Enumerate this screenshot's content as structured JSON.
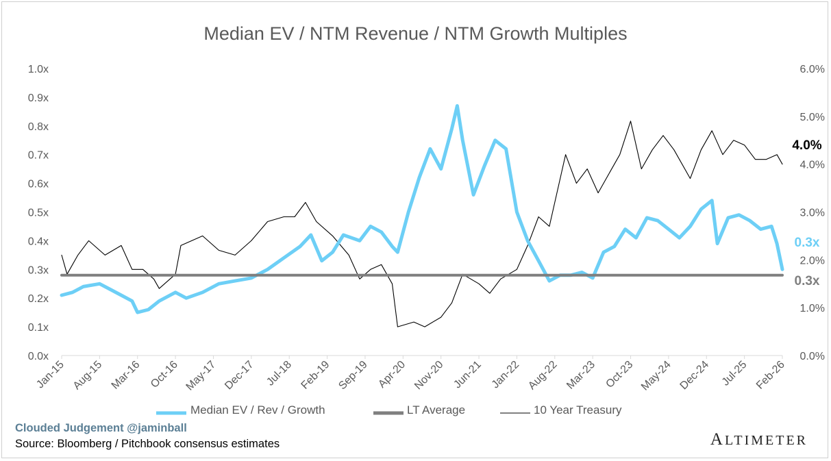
{
  "chart_data": {
    "type": "line",
    "title": "Median EV / NTM Revenue / NTM Growth Multiples",
    "x_tick_labels": [
      "Jan-15",
      "Aug-15",
      "Mar-16",
      "Oct-16",
      "May-17",
      "Dec-17",
      "Jul-18",
      "Feb-19",
      "Sep-19",
      "Apr-20",
      "Nov-20",
      "Jun-21",
      "Jan-22",
      "Aug-22",
      "Mar-23",
      "Oct-23",
      "May-24",
      "Dec-24",
      "Jul-25",
      "Feb-26"
    ],
    "y_left": {
      "ylim": [
        0,
        1.0
      ],
      "ticks": [
        "0.0x",
        "0.1x",
        "0.2x",
        "0.3x",
        "0.4x",
        "0.5x",
        "0.6x",
        "0.7x",
        "0.8x",
        "0.9x",
        "1.0x"
      ]
    },
    "y_right": {
      "ylim": [
        0,
        6.0
      ],
      "ticks": [
        "0.0%",
        "1.0%",
        "2.0%",
        "3.0%",
        "4.0%",
        "5.0%",
        "6.0%"
      ]
    },
    "grid": false,
    "legend_position": "bottom",
    "series": [
      {
        "name": "Median EV / Rev / Growth",
        "axis": "left",
        "color": "#6dcff6",
        "end_label": "0.3x",
        "points": [
          [
            "2015-01",
            0.21
          ],
          [
            "2015-03",
            0.22
          ],
          [
            "2015-05",
            0.24
          ],
          [
            "2015-08",
            0.25
          ],
          [
            "2015-10",
            0.23
          ],
          [
            "2015-12",
            0.21
          ],
          [
            "2016-02",
            0.19
          ],
          [
            "2016-03",
            0.15
          ],
          [
            "2016-05",
            0.16
          ],
          [
            "2016-07",
            0.19
          ],
          [
            "2016-10",
            0.22
          ],
          [
            "2016-12",
            0.2
          ],
          [
            "2017-03",
            0.22
          ],
          [
            "2017-06",
            0.25
          ],
          [
            "2017-09",
            0.26
          ],
          [
            "2017-12",
            0.27
          ],
          [
            "2018-03",
            0.3
          ],
          [
            "2018-06",
            0.34
          ],
          [
            "2018-09",
            0.38
          ],
          [
            "2018-11",
            0.42
          ],
          [
            "2019-01",
            0.33
          ],
          [
            "2019-03",
            0.36
          ],
          [
            "2019-05",
            0.42
          ],
          [
            "2019-08",
            0.4
          ],
          [
            "2019-10",
            0.45
          ],
          [
            "2019-12",
            0.43
          ],
          [
            "2020-02",
            0.38
          ],
          [
            "2020-03",
            0.36
          ],
          [
            "2020-05",
            0.5
          ],
          [
            "2020-07",
            0.62
          ],
          [
            "2020-09",
            0.72
          ],
          [
            "2020-11",
            0.65
          ],
          [
            "2021-01",
            0.79
          ],
          [
            "2021-02",
            0.87
          ],
          [
            "2021-03",
            0.75
          ],
          [
            "2021-05",
            0.56
          ],
          [
            "2021-07",
            0.66
          ],
          [
            "2021-09",
            0.75
          ],
          [
            "2021-11",
            0.72
          ],
          [
            "2022-01",
            0.5
          ],
          [
            "2022-03",
            0.4
          ],
          [
            "2022-05",
            0.33
          ],
          [
            "2022-07",
            0.26
          ],
          [
            "2022-09",
            0.28
          ],
          [
            "2022-11",
            0.28
          ],
          [
            "2023-01",
            0.29
          ],
          [
            "2023-03",
            0.27
          ],
          [
            "2023-05",
            0.36
          ],
          [
            "2023-07",
            0.38
          ],
          [
            "2023-09",
            0.44
          ],
          [
            "2023-11",
            0.41
          ],
          [
            "2024-01",
            0.48
          ],
          [
            "2024-03",
            0.47
          ],
          [
            "2024-05",
            0.44
          ],
          [
            "2024-07",
            0.41
          ],
          [
            "2024-09",
            0.45
          ],
          [
            "2024-11",
            0.51
          ],
          [
            "2025-01",
            0.54
          ],
          [
            "2025-02",
            0.39
          ],
          [
            "2025-04",
            0.48
          ],
          [
            "2025-06",
            0.49
          ],
          [
            "2025-08",
            0.47
          ],
          [
            "2025-10",
            0.44
          ],
          [
            "2025-12",
            0.45
          ],
          [
            "2026-01",
            0.39
          ],
          [
            "2026-02",
            0.3
          ]
        ]
      },
      {
        "name": "LT Average",
        "axis": "left",
        "color": "#7f7f7f",
        "end_label": "0.3x",
        "points": [
          [
            "2015-01",
            0.28
          ],
          [
            "2026-02",
            0.28
          ]
        ]
      },
      {
        "name": "10 Year Treasury",
        "axis": "right",
        "color": "#000000",
        "end_label": "4.0%",
        "points": [
          [
            "2015-01",
            2.1
          ],
          [
            "2015-02",
            1.7
          ],
          [
            "2015-04",
            2.1
          ],
          [
            "2015-06",
            2.4
          ],
          [
            "2015-09",
            2.1
          ],
          [
            "2015-12",
            2.3
          ],
          [
            "2016-02",
            1.8
          ],
          [
            "2016-04",
            1.8
          ],
          [
            "2016-06",
            1.6
          ],
          [
            "2016-07",
            1.4
          ],
          [
            "2016-10",
            1.7
          ],
          [
            "2016-11",
            2.3
          ],
          [
            "2017-03",
            2.5
          ],
          [
            "2017-06",
            2.2
          ],
          [
            "2017-09",
            2.1
          ],
          [
            "2017-12",
            2.4
          ],
          [
            "2018-03",
            2.8
          ],
          [
            "2018-06",
            2.9
          ],
          [
            "2018-08",
            2.9
          ],
          [
            "2018-10",
            3.2
          ],
          [
            "2018-12",
            2.8
          ],
          [
            "2019-03",
            2.5
          ],
          [
            "2019-06",
            2.1
          ],
          [
            "2019-08",
            1.6
          ],
          [
            "2019-10",
            1.8
          ],
          [
            "2019-12",
            1.9
          ],
          [
            "2020-02",
            1.5
          ],
          [
            "2020-03",
            0.6
          ],
          [
            "2020-06",
            0.7
          ],
          [
            "2020-08",
            0.6
          ],
          [
            "2020-11",
            0.8
          ],
          [
            "2021-01",
            1.1
          ],
          [
            "2021-03",
            1.7
          ],
          [
            "2021-06",
            1.5
          ],
          [
            "2021-08",
            1.3
          ],
          [
            "2021-10",
            1.6
          ],
          [
            "2022-01",
            1.8
          ],
          [
            "2022-03",
            2.3
          ],
          [
            "2022-05",
            2.9
          ],
          [
            "2022-07",
            2.7
          ],
          [
            "2022-10",
            4.2
          ],
          [
            "2022-12",
            3.6
          ],
          [
            "2023-02",
            3.9
          ],
          [
            "2023-04",
            3.4
          ],
          [
            "2023-06",
            3.8
          ],
          [
            "2023-08",
            4.2
          ],
          [
            "2023-10",
            4.9
          ],
          [
            "2023-12",
            3.9
          ],
          [
            "2024-02",
            4.3
          ],
          [
            "2024-04",
            4.6
          ],
          [
            "2024-06",
            4.3
          ],
          [
            "2024-09",
            3.7
          ],
          [
            "2024-11",
            4.3
          ],
          [
            "2025-01",
            4.7
          ],
          [
            "2025-03",
            4.2
          ],
          [
            "2025-05",
            4.5
          ],
          [
            "2025-07",
            4.4
          ],
          [
            "2025-09",
            4.1
          ],
          [
            "2025-11",
            4.1
          ],
          [
            "2026-01",
            4.2
          ],
          [
            "2026-02",
            4.0
          ]
        ]
      }
    ]
  },
  "footer": {
    "brand": "Clouded Judgement @jaminball",
    "source": "Source: Bloomberg / Pitchbook consensus estimates",
    "logo": "Altimeter"
  }
}
